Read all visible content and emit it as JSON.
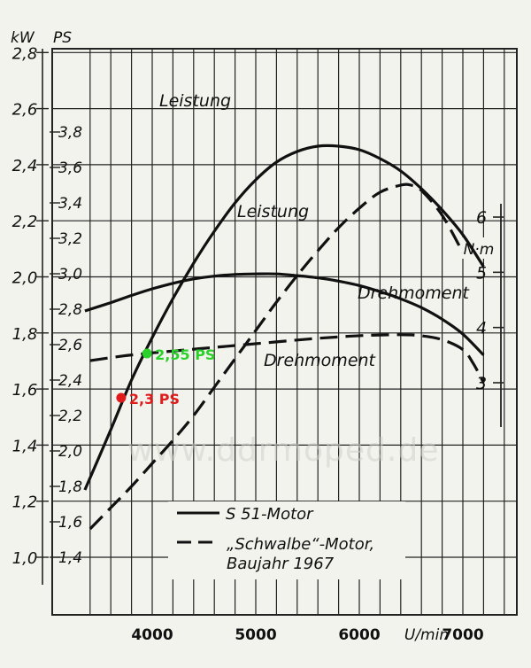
{
  "chart_data": {
    "type": "line",
    "x_axis": {
      "range": [
        3200,
        7600
      ],
      "ticks": [
        4000,
        5000,
        6000,
        7000
      ],
      "tick_labels": [
        "4000",
        "5000",
        "6000",
        "7000"
      ],
      "unit_label": "U/min"
    },
    "axis_kw": {
      "label": "kW",
      "range": [
        0.8,
        2.84
      ],
      "ticks": [
        1.0,
        1.2,
        1.4,
        1.6,
        1.8,
        2.0,
        2.2,
        2.4,
        2.6,
        2.8
      ],
      "tick_labels": [
        "1,0",
        "1,2",
        "1,4",
        "1,6",
        "1,8",
        "2,0",
        "2,2",
        "2,4",
        "2,6",
        "2,8"
      ]
    },
    "axis_ps": {
      "label": "PS",
      "ticks": [
        1.4,
        1.6,
        1.8,
        2.0,
        2.2,
        2.4,
        2.6,
        2.8,
        3.0,
        3.2,
        3.4,
        3.6,
        3.8
      ],
      "tick_labels": [
        "1,4",
        "1,6",
        "1,8",
        "2,0",
        "2,2",
        "2,4",
        "2,6",
        "2,8",
        "3,0",
        "3,2",
        "3,4",
        "3,6",
        "3,8"
      ]
    },
    "axis_nm": {
      "label": "N·m",
      "ticks": [
        3,
        4,
        5,
        6
      ],
      "tick_labels": [
        "3",
        "4",
        "5",
        "6"
      ]
    },
    "series": [
      {
        "name": "S 51-Motor",
        "quantity": "Leistung",
        "axis": "PS",
        "style": "solid",
        "label": "Leistung",
        "x": [
          3350,
          3600,
          3800,
          4000,
          4200,
          4400,
          4600,
          4800,
          5000,
          5200,
          5400,
          5600,
          5800,
          6000,
          6200,
          6400,
          6600,
          6800,
          7000,
          7200
        ],
        "y": [
          1.78,
          2.12,
          2.4,
          2.64,
          2.86,
          3.06,
          3.24,
          3.4,
          3.53,
          3.63,
          3.69,
          3.72,
          3.72,
          3.7,
          3.65,
          3.58,
          3.48,
          3.36,
          3.22,
          3.04
        ]
      },
      {
        "name": "„Schwalbe“-Motor, Baujahr 1967",
        "quantity": "Leistung",
        "axis": "PS",
        "style": "dashed",
        "label": "Leistung",
        "x": [
          3400,
          3600,
          3800,
          4000,
          4200,
          4400,
          4600,
          4800,
          5000,
          5200,
          5400,
          5600,
          5800,
          6000,
          6200,
          6400,
          6500,
          6600,
          6800,
          7000
        ],
        "y": [
          1.56,
          1.68,
          1.8,
          1.93,
          2.06,
          2.2,
          2.36,
          2.52,
          2.68,
          2.84,
          2.99,
          3.13,
          3.26,
          3.37,
          3.46,
          3.5,
          3.5,
          3.47,
          3.33,
          3.12
        ]
      },
      {
        "name": "S 51-Motor",
        "quantity": "Drehmoment",
        "axis": "N·m",
        "style": "solid",
        "label": "Drehmoment",
        "x": [
          3350,
          3600,
          3800,
          4000,
          4200,
          4400,
          4600,
          4800,
          5000,
          5200,
          5400,
          5600,
          5800,
          6000,
          6200,
          6400,
          6600,
          6800,
          7000,
          7200
        ],
        "y": [
          4.3,
          4.45,
          4.58,
          4.7,
          4.8,
          4.88,
          4.93,
          4.96,
          4.97,
          4.97,
          4.94,
          4.9,
          4.84,
          4.76,
          4.65,
          4.52,
          4.36,
          4.15,
          3.88,
          3.5
        ]
      },
      {
        "name": "„Schwalbe“-Motor, Baujahr 1967",
        "quantity": "Drehmoment",
        "axis": "N·m",
        "style": "dashed",
        "label": "Drehmoment",
        "x": [
          3400,
          3700,
          4000,
          4300,
          4600,
          4900,
          5200,
          5500,
          5800,
          6100,
          6400,
          6600,
          6800,
          7000,
          7100,
          7200
        ],
        "y": [
          3.4,
          3.48,
          3.54,
          3.59,
          3.64,
          3.69,
          3.74,
          3.79,
          3.83,
          3.86,
          3.87,
          3.85,
          3.78,
          3.6,
          3.35,
          3.0
        ]
      }
    ],
    "markers": [
      {
        "label": "2,55 PS",
        "x": 3950,
        "axis": "PS",
        "y": 2.55,
        "color": "#2ad12a"
      },
      {
        "label": "2,3 PS",
        "x": 3700,
        "axis": "PS",
        "y": 2.3,
        "color": "#e01b1b"
      }
    ],
    "legend": {
      "placement": "bottom-center",
      "items": [
        {
          "label": "S 51-Motor",
          "style": "solid"
        },
        {
          "label": "„Schwalbe“-Motor,",
          "style": "dashed"
        },
        {
          "label": "Baujahr 1967",
          "style": "none"
        }
      ]
    },
    "watermark": "www.ddrmoped.de",
    "grid": true
  }
}
